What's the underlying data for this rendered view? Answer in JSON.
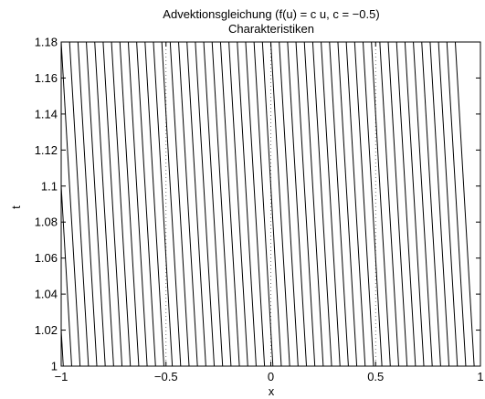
{
  "chart_data": {
    "type": "line",
    "title": "Advektionsgleichung (f(u) = c u, c = −0.5)",
    "subtitle": "Charakteristiken",
    "xlabel": "x",
    "ylabel": "t",
    "xlim": [
      -1,
      1
    ],
    "ylim": [
      1,
      1.18
    ],
    "x_ticks": [
      -1,
      -0.5,
      0,
      0.5,
      1
    ],
    "x_tick_labels": [
      "−1",
      "−0.5",
      "0",
      "0.5",
      "1"
    ],
    "y_ticks": [
      1,
      1.02,
      1.04,
      1.06,
      1.08,
      1.1,
      1.12,
      1.14,
      1.16,
      1.18
    ],
    "y_tick_labels": [
      "1",
      "1.02",
      "1.04",
      "1.06",
      "1.08",
      "1.1",
      "1.12",
      "1.14",
      "1.16",
      "1.18"
    ],
    "grid": "dotted at x ticks",
    "characteristics": {
      "speed": -0.5,
      "t_start": 1,
      "t_end": 1.18,
      "x_start": [
        -0.99,
        -0.95,
        -0.91,
        -0.87,
        -0.83,
        -0.79,
        -0.75,
        -0.71,
        -0.67,
        -0.63,
        -0.59,
        -0.55,
        -0.51,
        -0.47,
        -0.43,
        -0.39,
        -0.35,
        -0.31,
        -0.27,
        -0.23,
        -0.19,
        -0.15,
        -0.11,
        -0.07,
        -0.03,
        0.01,
        0.05,
        0.09,
        0.13,
        0.17,
        0.21,
        0.25,
        0.29,
        0.33,
        0.37,
        0.41,
        0.45,
        0.49,
        0.53,
        0.57,
        0.61,
        0.65,
        0.69,
        0.73,
        0.77,
        0.81,
        0.85,
        0.89,
        0.93,
        0.97
      ]
    },
    "colors": {
      "lines": "#000000",
      "grid": "#555555",
      "background": "#ffffff"
    }
  }
}
